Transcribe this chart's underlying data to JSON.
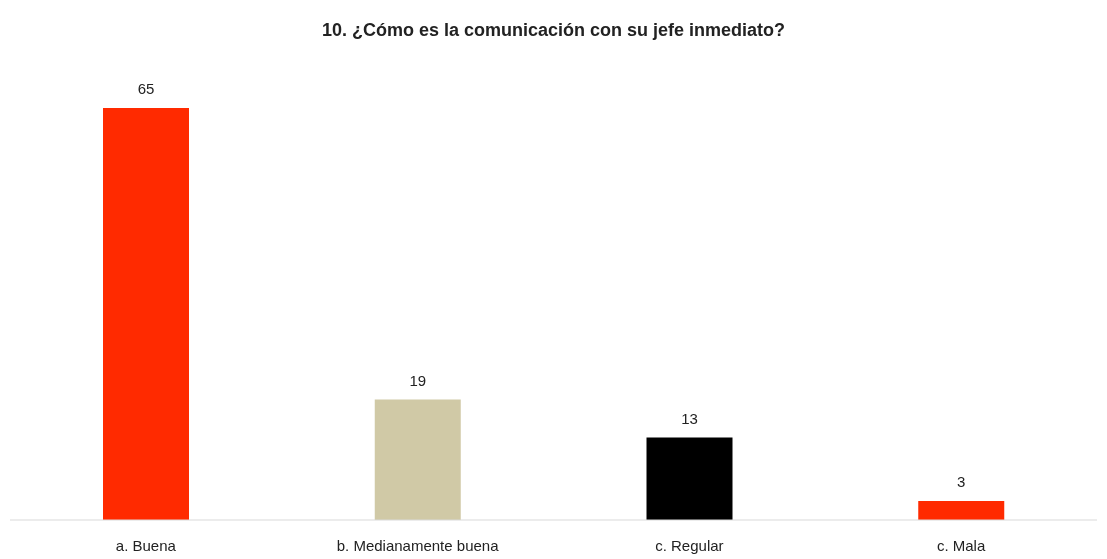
{
  "chart_data": {
    "type": "bar",
    "title": "10. ¿Cómo es la comunicación con su jefe inmediato?",
    "categories": [
      "a. Buena",
      "b. Medianamente buena",
      "c. Regular",
      "c. Mala"
    ],
    "values": [
      65,
      19,
      13,
      3
    ],
    "colors": [
      "#ff2a00",
      "#d0c9a6",
      "#000000",
      "#ff2a00"
    ],
    "data_labels": true
  }
}
